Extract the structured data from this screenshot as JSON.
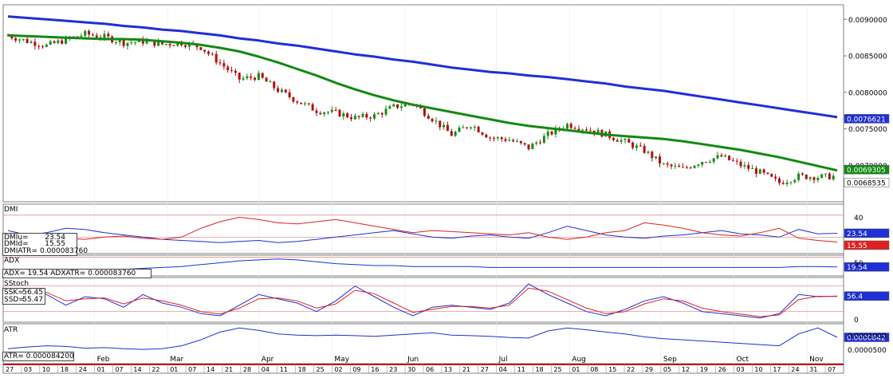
{
  "colors": {
    "sma_long": "#1f2fd6",
    "sma_short": "#128a12",
    "up_candle": "#1a8a1a",
    "down_candle": "#b01010",
    "dmi_plus": "#1f2fd6",
    "dmi_minus": "#e02020",
    "guide": "#d98080",
    "axis_bg": "#ffffff"
  },
  "price_panel": {
    "tag_long": "0.0076621",
    "tag_short": "0.0069305",
    "tag_last": "0.0068535"
  },
  "dmi_panel": {
    "title": "DMI",
    "dmi_plus_label": "DMIu=",
    "dmi_plus_value": "23.54",
    "dmi_minus_label": "DMId=",
    "dmi_minus_value": "15.55",
    "atr_label": "DMIATR= 0.000083760",
    "tick_top": "40",
    "tag_plus": "23.54",
    "tag_minus": "15.55"
  },
  "adx_panel": {
    "title": "ADX",
    "readout": "ADX=     19.54 ADXATR= 0.000083760",
    "tick_top": "50",
    "tag": "19.54"
  },
  "stoch_panel": {
    "title": "SStoch",
    "ssk_label": "SSK=",
    "ssk_value": "56.45",
    "ssd_label": "SSD=",
    "ssd_value": "55.47",
    "tick_bottom": "0",
    "tag": "56.4"
  },
  "atr_panel": {
    "title": "ATR",
    "readout": "ATR= 0.000084200",
    "tick_top": "0.0001000",
    "tick_bottom": "0.0000500",
    "tag": "0.0000842"
  },
  "chart_data": {
    "type": "candlestick",
    "y_ticks": [
      "0.0090000",
      "0.0085000",
      "0.0080000",
      "0.0075000",
      "0.0070000"
    ],
    "ylim": [
      0.0065,
      0.0092
    ],
    "x_day_labels": [
      "27",
      "03",
      "10",
      "18",
      "24",
      "01",
      "07",
      "14",
      "22",
      "01",
      "07",
      "14",
      "21",
      "28",
      "04",
      "11",
      "18",
      "25",
      "02",
      "09",
      "16",
      "23",
      "30",
      "06",
      "13",
      "21",
      "27",
      "04",
      "11",
      "18",
      "25",
      "01",
      "08",
      "15",
      "22",
      "29",
      "05",
      "12",
      "19",
      "26",
      "03",
      "10",
      "17",
      "24",
      "31",
      "07"
    ],
    "x_month_labels": [
      "Feb",
      "Mar",
      "Apr",
      "May",
      "Jun",
      "Jul",
      "Aug",
      "Sep",
      "Oct",
      "Nov"
    ],
    "series": [
      {
        "name": "SMA long",
        "values": [
          0.00904,
          0.00902,
          0.009,
          0.00898,
          0.00896,
          0.00894,
          0.00891,
          0.00889,
          0.00886,
          0.00884,
          0.00881,
          0.00878,
          0.00874,
          0.00871,
          0.00867,
          0.00864,
          0.0086,
          0.00856,
          0.00852,
          0.00849,
          0.00845,
          0.00842,
          0.00838,
          0.00834,
          0.00831,
          0.00828,
          0.00826,
          0.00823,
          0.00821,
          0.00818,
          0.00815,
          0.00812,
          0.00808,
          0.00805,
          0.00802,
          0.00798,
          0.00794,
          0.0079,
          0.00786,
          0.00782,
          0.00778,
          0.00774,
          0.0077,
          0.00766
        ]
      },
      {
        "name": "SMA short",
        "values": [
          0.00878,
          0.00877,
          0.00876,
          0.00875,
          0.00874,
          0.00873,
          0.00873,
          0.00872,
          0.0087,
          0.00868,
          0.00865,
          0.00861,
          0.00856,
          0.00849,
          0.00841,
          0.00832,
          0.00823,
          0.00813,
          0.00804,
          0.00796,
          0.00789,
          0.00783,
          0.00778,
          0.00773,
          0.00768,
          0.00763,
          0.00758,
          0.00754,
          0.00751,
          0.00748,
          0.00745,
          0.00742,
          0.0074,
          0.00738,
          0.00736,
          0.00733,
          0.00729,
          0.00725,
          0.00721,
          0.00716,
          0.00711,
          0.00705,
          0.00699,
          0.00693
        ]
      },
      {
        "name": "Close",
        "values": [
          0.00878,
          0.0087,
          0.00864,
          0.00872,
          0.0088,
          0.00876,
          0.00868,
          0.0087,
          0.00866,
          0.00868,
          0.00862,
          0.0084,
          0.00818,
          0.00822,
          0.00803,
          0.00788,
          0.00775,
          0.00772,
          0.00765,
          0.00768,
          0.0078,
          0.00785,
          0.00764,
          0.00742,
          0.00756,
          0.00738,
          0.00735,
          0.00724,
          0.00742,
          0.00756,
          0.0075,
          0.00742,
          0.00732,
          0.0072,
          0.007,
          0.00695,
          0.00706,
          0.00712,
          0.007,
          0.0069,
          0.00676,
          0.00685,
          0.00684,
          0.00685
        ]
      }
    ],
    "indicators": {
      "dmi_plus": [
        26,
        22,
        24,
        28,
        27,
        24,
        22,
        20,
        18,
        17,
        16,
        15,
        16,
        17,
        15,
        16,
        18,
        20,
        22,
        24,
        26,
        23,
        20,
        19,
        21,
        22,
        20,
        19,
        24,
        30,
        26,
        22,
        20,
        19,
        21,
        22,
        24,
        26,
        23,
        22,
        20,
        27,
        23,
        23.54
      ],
      "dmi_minus": [
        20,
        22,
        21,
        19,
        18,
        20,
        21,
        19,
        18,
        20,
        28,
        34,
        38,
        36,
        33,
        32,
        34,
        36,
        33,
        30,
        27,
        24,
        26,
        25,
        24,
        23,
        22,
        24,
        20,
        18,
        20,
        24,
        26,
        33,
        31,
        28,
        24,
        22,
        21,
        24,
        28,
        19,
        17,
        15.55
      ],
      "adx": [
        17,
        17,
        17,
        17,
        17,
        17,
        17,
        18,
        19,
        20,
        22,
        24,
        26,
        27,
        28,
        27,
        25,
        23,
        22,
        21,
        21,
        20,
        20,
        20,
        20,
        19,
        19,
        19,
        19,
        19,
        19,
        19,
        19,
        19,
        19,
        19,
        19,
        19,
        19,
        19,
        19,
        20,
        20,
        19.54
      ],
      "ssk": [
        45,
        75,
        60,
        35,
        55,
        50,
        30,
        60,
        40,
        30,
        15,
        10,
        35,
        60,
        50,
        40,
        20,
        45,
        80,
        55,
        30,
        10,
        30,
        35,
        30,
        25,
        40,
        85,
        60,
        40,
        20,
        10,
        25,
        45,
        55,
        40,
        20,
        15,
        10,
        5,
        15,
        60,
        55,
        56.45
      ],
      "ssd": [
        40,
        65,
        65,
        45,
        50,
        52,
        38,
        52,
        45,
        35,
        20,
        14,
        28,
        50,
        52,
        45,
        28,
        38,
        70,
        62,
        40,
        18,
        25,
        32,
        32,
        28,
        35,
        75,
        68,
        48,
        28,
        15,
        20,
        38,
        50,
        45,
        28,
        20,
        14,
        8,
        12,
        48,
        56,
        55.47
      ],
      "atr": [
        6.5e-05,
        6.8e-05,
        7e-05,
        6.9e-05,
        6.6e-05,
        6.7e-05,
        6.5e-05,
        6.4e-05,
        6.5e-05,
        7e-05,
        8e-05,
        9.3e-05,
        0.0001,
        9.6e-05,
        9e-05,
        8.8e-05,
        8.7e-05,
        8.8e-05,
        8.7e-05,
        8.6e-05,
        8.8e-05,
        9e-05,
        9.2e-05,
        8.8e-05,
        8.7e-05,
        8.6e-05,
        8.4e-05,
        8.3e-05,
        9.5e-05,
        0.0001,
        9.7e-05,
        9.3e-05,
        9e-05,
        8.5e-05,
        8.2e-05,
        8e-05,
        7.8e-05,
        7.6e-05,
        7.4e-05,
        7.2e-05,
        7e-05,
        9e-05,
        0.0001,
        8.42e-05
      ]
    }
  }
}
